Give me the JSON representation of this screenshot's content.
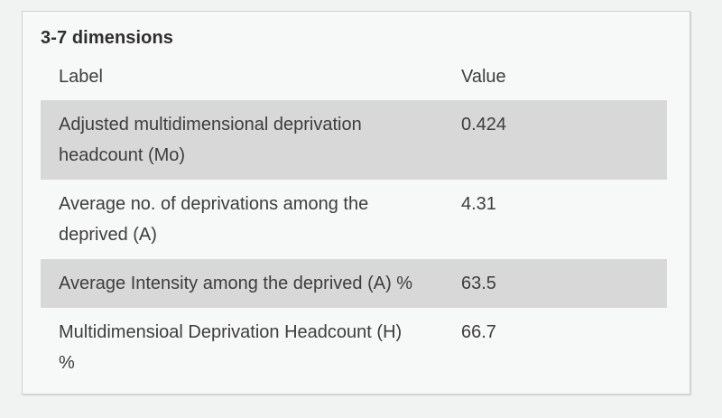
{
  "card": {
    "title": "3-7 dimensions"
  },
  "table": {
    "headers": [
      "Label",
      "Value"
    ],
    "rows": [
      {
        "label": "Adjusted multidimensional deprivation headcount (Mo)",
        "value": "0.424"
      },
      {
        "label": "Average no. of deprivations among the deprived (A)",
        "value": "4.31"
      },
      {
        "label": "Average Intensity among the deprived (A) %",
        "value": "63.5"
      },
      {
        "label": "Multidimensioal Deprivation Headcount (H) %",
        "value": "66.7"
      }
    ]
  },
  "colors": {
    "page_background": "#f1f2f2",
    "card_background": "#f7f8f8",
    "card_border": "#cfd2d1",
    "row_stripe": "#d8d8d8",
    "body_text": "#3d3d3d",
    "title_text": "#2e2e2e"
  }
}
